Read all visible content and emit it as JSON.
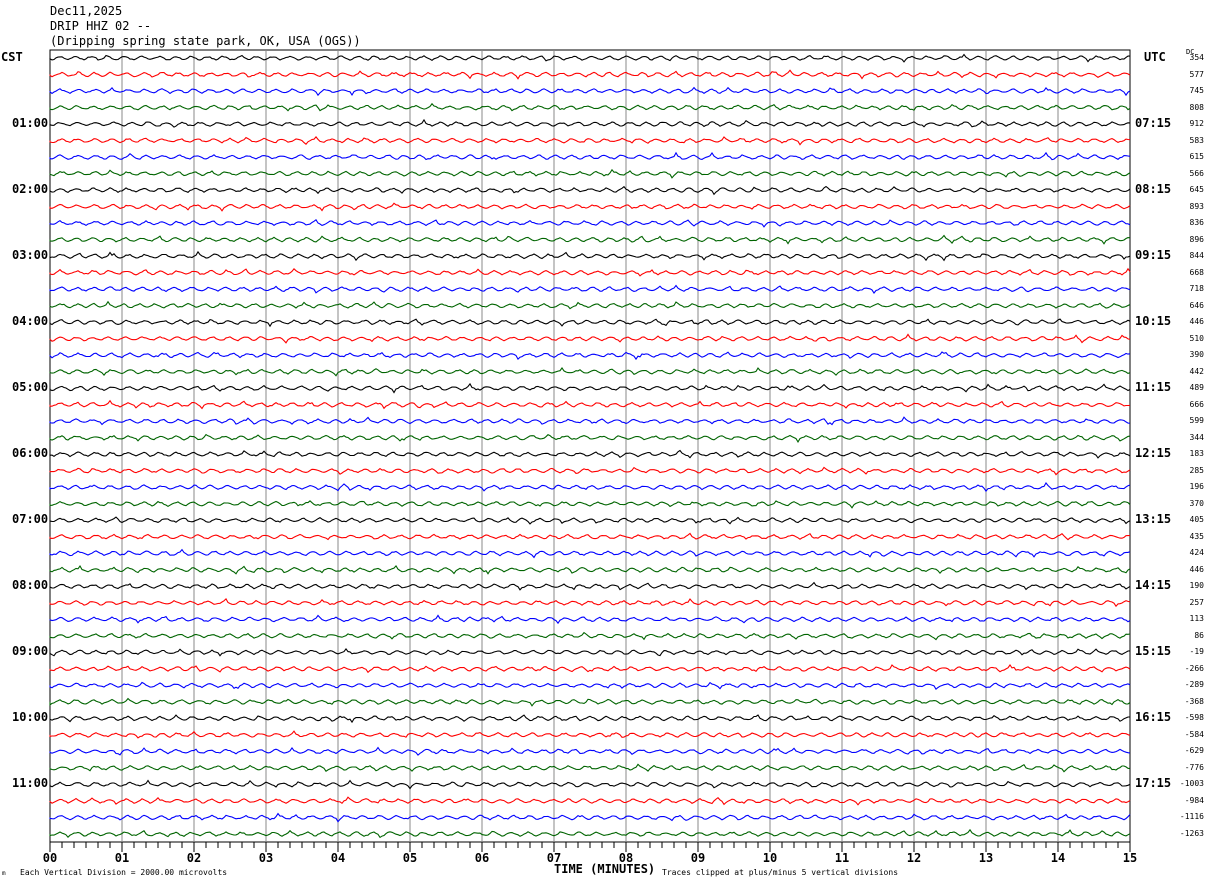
{
  "header": {
    "date": "Dec11,2025",
    "station": "DRIP HHZ 02 --",
    "location": "(Dripping spring state park, OK, USA (OGS))"
  },
  "left_timezone": "CST",
  "right_timezone": "UTC",
  "dc_label": "DC",
  "footer": {
    "scale_note": "Each Vertical Division = 2000.00 microvolts",
    "clip_note": "Traces clipped at plus/minus 5 vertical divisions",
    "marker": "m"
  },
  "chart_data": {
    "type": "line",
    "xlabel": "TIME (MINUTES)",
    "xlim": [
      0,
      15
    ],
    "x_tick_labels": [
      "00",
      "01",
      "02",
      "03",
      "04",
      "05",
      "06",
      "07",
      "08",
      "09",
      "10",
      "11",
      "12",
      "13",
      "14",
      "15"
    ],
    "grid": true,
    "trace_count": 48,
    "trace_colors": [
      "#000000",
      "#ff0000",
      "#0000ff",
      "#006400"
    ],
    "left_hour_labels": [
      "01:00",
      "02:00",
      "03:00",
      "04:00",
      "05:00",
      "06:00",
      "07:00",
      "08:00",
      "09:00",
      "10:00",
      "11:00"
    ],
    "right_hour_labels": [
      "07:15",
      "08:15",
      "09:15",
      "10:15",
      "11:15",
      "12:15",
      "13:15",
      "14:15",
      "15:15",
      "16:15",
      "17:15"
    ],
    "dc_offsets": [
      "354",
      "577",
      "745",
      "808",
      "912",
      "583",
      "615",
      "566",
      "645",
      "893",
      "836",
      "896",
      "844",
      "668",
      "718",
      "646",
      "446",
      "510",
      "390",
      "442",
      "489",
      "666",
      "599",
      "344",
      "183",
      "285",
      "196",
      "370",
      "405",
      "435",
      "424",
      "446",
      "190",
      "257",
      "113",
      "86",
      "-19",
      "-266",
      "-289",
      "-368",
      "-598",
      "-584",
      "-629",
      "-776",
      "-1003",
      "-984",
      "-1116",
      "-1263"
    ]
  }
}
